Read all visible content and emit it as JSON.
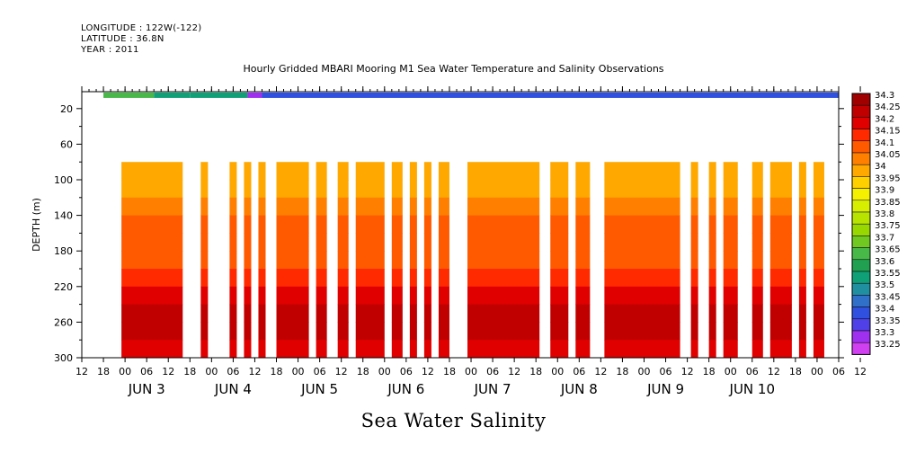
{
  "header": {
    "longitude": "LONGITUDE : 122W(-122)",
    "latitude": "LATITUDE : 36.8N",
    "year": "YEAR : 2011",
    "title": "Hourly Gridded MBARI Mooring M1 Sea Water Temperature and Salinity Observations"
  },
  "footer": {
    "variable_title": "Sea Water Salinity"
  },
  "chart_data": {
    "type": "heatmap",
    "title": "Hourly Gridded MBARI Mooring M1 Sea Water Temperature and Salinity Observations",
    "subtitle": "Sea Water Salinity",
    "ylabel": "DEPTH (m)",
    "xlabel": "",
    "ylim": [
      300,
      1
    ],
    "xlim_hours_from_jun2_12": [
      0,
      210
    ],
    "y_ticks": [
      20,
      60,
      100,
      140,
      180,
      220,
      260,
      300
    ],
    "x_hour_ticks": [
      "12",
      "18",
      "00",
      "06",
      "12",
      "18",
      "00",
      "06",
      "12",
      "18",
      "00",
      "06",
      "12",
      "18",
      "00",
      "06",
      "12",
      "18",
      "00",
      "06",
      "12",
      "18",
      "00",
      "06",
      "12",
      "18",
      "00",
      "06",
      "12",
      "18",
      "00",
      "06",
      "12",
      "18",
      "00",
      "06",
      "12"
    ],
    "x_day_labels": [
      "JUN  3",
      "JUN  4",
      "JUN  5",
      "JUN  6",
      "JUN  7",
      "JUN  8",
      "JUN  9",
      "JUN 10"
    ],
    "colorbar_levels": [
      "34.3",
      "34.25",
      "34.2",
      "34.15",
      "34.1",
      "34.05",
      "34",
      "33.95",
      "33.9",
      "33.85",
      "33.8",
      "33.75",
      "33.7",
      "33.65",
      "33.6",
      "33.55",
      "33.5",
      "33.45",
      "33.4",
      "33.35",
      "33.3",
      "33.25"
    ],
    "colorbar_colors": [
      "#a00000",
      "#c00000",
      "#e00000",
      "#ff2a00",
      "#ff5a00",
      "#ff8000",
      "#ffa800",
      "#ffd000",
      "#f5f000",
      "#d8ee00",
      "#b8e200",
      "#98d800",
      "#70c820",
      "#48b848",
      "#20a050",
      "#10a078",
      "#2090a0",
      "#3070c8",
      "#3050e0",
      "#5040e8",
      "#a030f0",
      "#d040f0"
    ],
    "surface_band": {
      "depth_range": [
        2,
        8
      ],
      "segments": [
        {
          "from_hour": 6,
          "to_hour": 20,
          "value": 33.65
        },
        {
          "from_hour": 20,
          "to_hour": 30,
          "value": 33.58
        },
        {
          "from_hour": 30,
          "to_hour": 46,
          "value": 33.55
        },
        {
          "from_hour": 46,
          "to_hour": 50,
          "value": 33.3
        },
        {
          "from_hour": 50,
          "to_hour": 210,
          "value": 33.43
        }
      ]
    },
    "profile_data_depth_range": [
      80,
      300
    ],
    "profile_depths": [
      80,
      100,
      120,
      140,
      160,
      180,
      200,
      220,
      240,
      260,
      280,
      300
    ],
    "profile_values": [
      34.0,
      34.0,
      34.05,
      34.1,
      34.12,
      34.12,
      34.15,
      34.2,
      34.25,
      34.25,
      34.2,
      34.18
    ],
    "data_segments_hours": [
      [
        11,
        28
      ],
      [
        33,
        35
      ],
      [
        41,
        43
      ],
      [
        45,
        47
      ],
      [
        49,
        51
      ],
      [
        54,
        63
      ],
      [
        65,
        68
      ],
      [
        71,
        74
      ],
      [
        76,
        84
      ],
      [
        86,
        89
      ],
      [
        91,
        93
      ],
      [
        95,
        97
      ],
      [
        99,
        102
      ],
      [
        107,
        127
      ],
      [
        130,
        135
      ],
      [
        137,
        141
      ],
      [
        145,
        166
      ],
      [
        169,
        171
      ],
      [
        174,
        176
      ],
      [
        178,
        182
      ],
      [
        186,
        189
      ],
      [
        191,
        197
      ],
      [
        199,
        201
      ],
      [
        203,
        206
      ]
    ]
  }
}
